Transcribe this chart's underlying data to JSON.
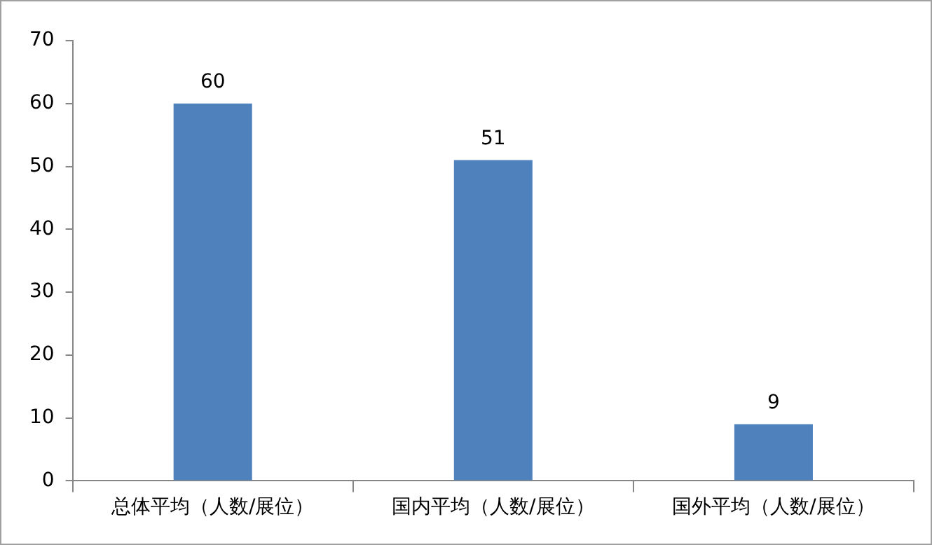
{
  "chart_data": {
    "type": "bar",
    "categories": [
      "总体平均（人数/展位）",
      "国内平均（人数/展位）",
      "国外平均（人数/展位）"
    ],
    "values": [
      60,
      51,
      9
    ],
    "color": "#4f81bd",
    "ylim": [
      0,
      70
    ],
    "yticks": [
      0,
      10,
      20,
      30,
      40,
      50,
      60,
      70
    ],
    "grid": false,
    "legend": false,
    "data_labels": true
  }
}
